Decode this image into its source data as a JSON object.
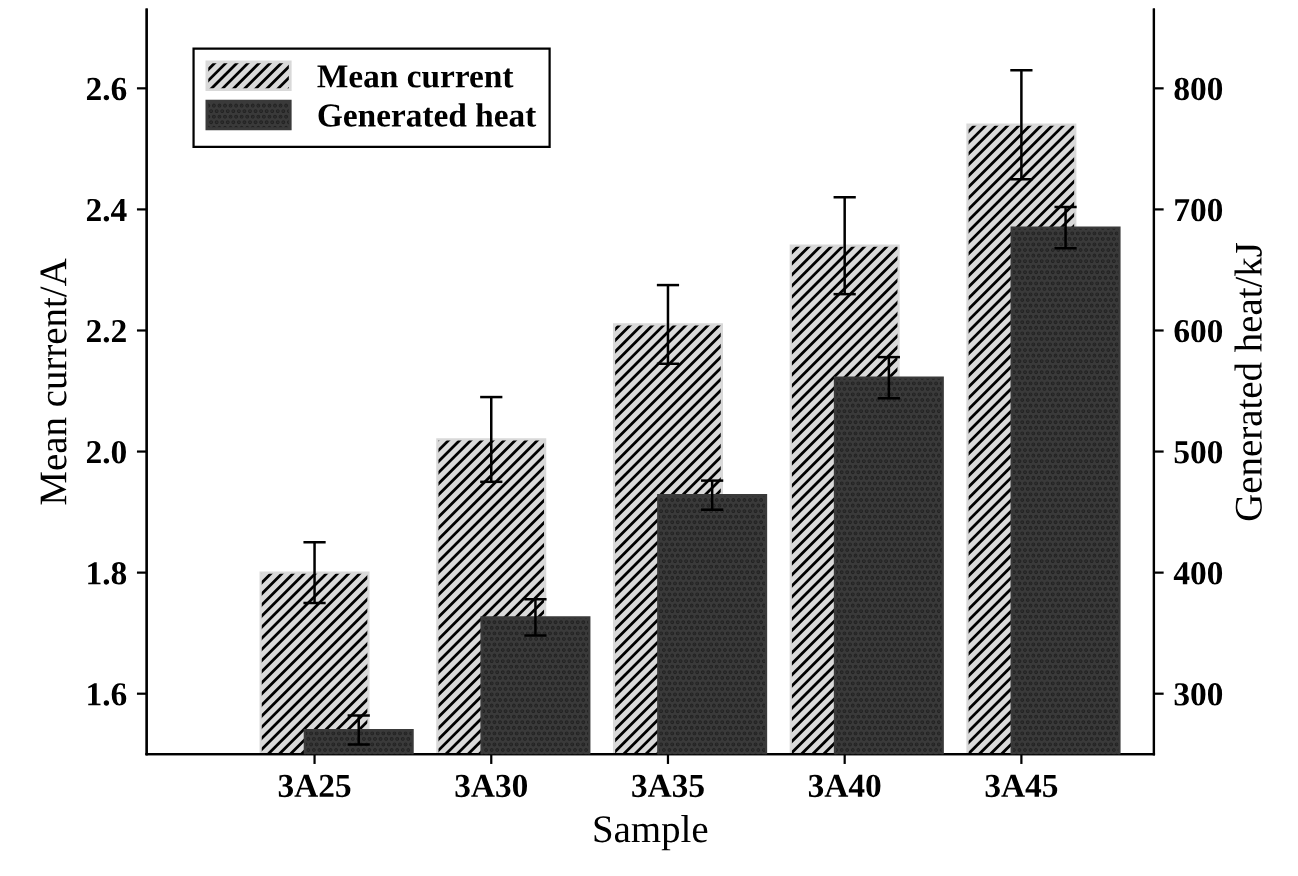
{
  "chart_data": {
    "type": "bar",
    "xlabel": "Sample",
    "ylabel": "Mean current/A",
    "y2label": "Generated heat/kJ",
    "categories": [
      "3A25",
      "3A30",
      "3A35",
      "3A40",
      "3A45"
    ],
    "series": [
      {
        "name": "Mean current",
        "color": "#d9d9d9",
        "values": [
          1.8,
          2.02,
          2.21,
          2.34,
          2.54
        ],
        "errors": [
          0.05,
          0.07,
          0.065,
          0.08,
          0.09
        ]
      },
      {
        "name": "Generated heat",
        "color": "#3a3a3a",
        "axis": "y2",
        "values": [
          270,
          363,
          464,
          561,
          685
        ],
        "errors": [
          12,
          15,
          12,
          17,
          17
        ]
      }
    ],
    "ylim": [
      1.5,
      2.73
    ],
    "yticks": [
      {
        "value": 1.6,
        "label": "1.6"
      },
      {
        "value": 1.8,
        "label": "1.8"
      },
      {
        "value": 2.0,
        "label": "2.0"
      },
      {
        "value": 2.2,
        "label": "2.2"
      },
      {
        "value": 2.4,
        "label": "2.4"
      },
      {
        "value": 2.6,
        "label": "2.6"
      }
    ],
    "y2lim": [
      250,
      865
    ],
    "y2ticks": [
      300,
      400,
      500,
      600,
      700,
      800
    ],
    "legend": "top left",
    "grid": false
  }
}
